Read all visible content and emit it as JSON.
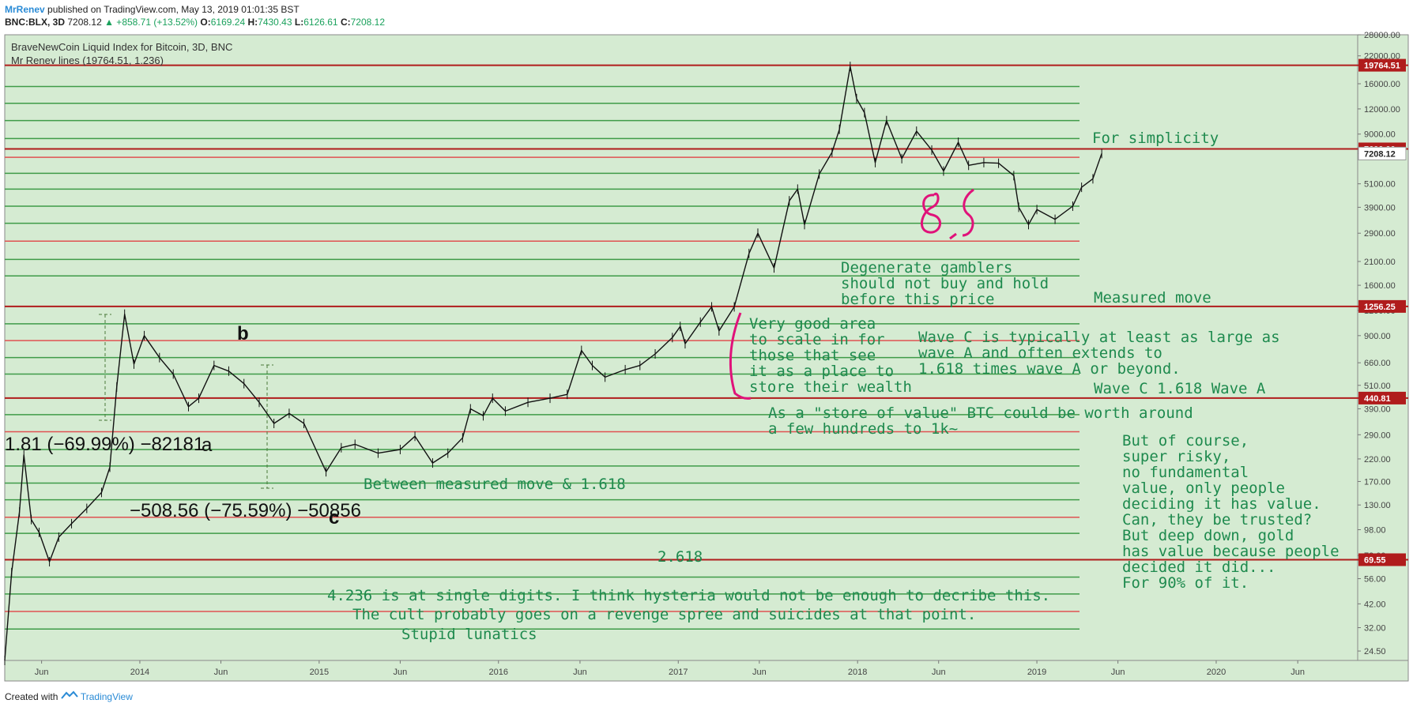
{
  "header": {
    "author": "MrRenev",
    "published": " published on TradingView.com, May 13, 2019 01:01:35 BST",
    "symbol": "BNC:BLX, 3D",
    "last": "7208.12",
    "change": "▲ +858.71 (+13.52%)",
    "o_label": "O:",
    "o": "6169.24",
    "h_label": "H:",
    "h": "7430.43",
    "l_label": "L:",
    "l": "6126.61",
    "c_label": "C:",
    "c": "7208.12"
  },
  "legend": {
    "title": "BraveNewCoin Liquid Index for Bitcoin, 3D, BNC",
    "indicator": "Mr Renev lines (19764.51, 1.236)"
  },
  "footer": {
    "created_with": "Created with",
    "brand": "TradingView"
  },
  "colors": {
    "background": "#d5ebd2",
    "green_line": "#3f9b48",
    "red_line": "#e05252",
    "dark_red_line": "#b01c1c",
    "tag": "#b01c1c",
    "annotation": "#1e8a4e",
    "magenta": "#e0127a"
  },
  "chart_data": {
    "type": "line",
    "title": "BraveNewCoin Liquid Index for Bitcoin, 3D, BNC",
    "y_scale": "log",
    "ylim": [
      22,
      28000
    ],
    "y_ticks": [
      "28000.00",
      "22000.00",
      "16000.00",
      "12000.00",
      "9000.00",
      "7208.12",
      "5100.00",
      "3900.00",
      "2900.00",
      "2100.00",
      "1600.00",
      "1200.00",
      "900.00",
      "660.00",
      "510.00",
      "390.00",
      "290.00",
      "220.00",
      "170.00",
      "130.00",
      "98.00",
      "73.00",
      "56.00",
      "42.00",
      "32.00",
      "24.50"
    ],
    "x_ticks": [
      "Jun",
      "2014",
      "Jun",
      "2015",
      "Jun",
      "2016",
      "Jun",
      "2017",
      "Jun",
      "2018",
      "Jun",
      "2019",
      "Jun",
      "2020",
      "Jun"
    ],
    "price_tags": [
      {
        "label": "19764.51",
        "value": 19764.51,
        "color": "#b01c1c"
      },
      {
        "label": "7600.00",
        "value": 7600,
        "color": "#b01c1c"
      },
      {
        "label": "7208.12",
        "value": 7208.12,
        "color": "#ffffff"
      },
      {
        "label": "1256.25",
        "value": 1256.25,
        "color": "#b01c1c"
      },
      {
        "label": "440.81",
        "value": 440.81,
        "color": "#b01c1c"
      },
      {
        "label": "69.55",
        "value": 69.55,
        "color": "#b01c1c"
      }
    ],
    "series": [
      {
        "values": [
          {
            "x": "2013-04",
            "y": 22
          },
          {
            "x": "2013-04-15",
            "y": 60
          },
          {
            "x": "2013-05",
            "y": 120
          },
          {
            "x": "2013-05-10",
            "y": 230
          },
          {
            "x": "2013-05-25",
            "y": 110
          },
          {
            "x": "2013-06-10",
            "y": 95
          },
          {
            "x": "2013-07-01",
            "y": 68
          },
          {
            "x": "2013-07-20",
            "y": 90
          },
          {
            "x": "2013-08-15",
            "y": 105
          },
          {
            "x": "2013-09-15",
            "y": 125
          },
          {
            "x": "2013-10-15",
            "y": 150
          },
          {
            "x": "2013-11-01",
            "y": 200
          },
          {
            "x": "2013-11-15",
            "y": 500
          },
          {
            "x": "2013-12-01",
            "y": 1150
          },
          {
            "x": "2013-12-20",
            "y": 650
          },
          {
            "x": "2014-01-10",
            "y": 900
          },
          {
            "x": "2014-02-10",
            "y": 700
          },
          {
            "x": "2014-03-10",
            "y": 580
          },
          {
            "x": "2014-04-10",
            "y": 400
          },
          {
            "x": "2014-05-01",
            "y": 440
          },
          {
            "x": "2014-06-01",
            "y": 640
          },
          {
            "x": "2014-07-01",
            "y": 600
          },
          {
            "x": "2014-08-01",
            "y": 520
          },
          {
            "x": "2014-09-01",
            "y": 420
          },
          {
            "x": "2014-10-01",
            "y": 330
          },
          {
            "x": "2014-11-01",
            "y": 370
          },
          {
            "x": "2014-12-01",
            "y": 330
          },
          {
            "x": "2015-01-15",
            "y": 190
          },
          {
            "x": "2015-02-15",
            "y": 250
          },
          {
            "x": "2015-03-15",
            "y": 260
          },
          {
            "x": "2015-05-01",
            "y": 235
          },
          {
            "x": "2015-06-15",
            "y": 245
          },
          {
            "x": "2015-07-15",
            "y": 285
          },
          {
            "x": "2015-08-20",
            "y": 210
          },
          {
            "x": "2015-09-20",
            "y": 235
          },
          {
            "x": "2015-10-20",
            "y": 280
          },
          {
            "x": "2015-11-05",
            "y": 390
          },
          {
            "x": "2015-12-01",
            "y": 360
          },
          {
            "x": "2015-12-20",
            "y": 440
          },
          {
            "x": "2016-01-15",
            "y": 380
          },
          {
            "x": "2016-03-01",
            "y": 420
          },
          {
            "x": "2016-04-15",
            "y": 440
          },
          {
            "x": "2016-05-20",
            "y": 460
          },
          {
            "x": "2016-06-18",
            "y": 760
          },
          {
            "x": "2016-07-10",
            "y": 640
          },
          {
            "x": "2016-08-05",
            "y": 560
          },
          {
            "x": "2016-09-15",
            "y": 610
          },
          {
            "x": "2016-10-15",
            "y": 640
          },
          {
            "x": "2016-11-15",
            "y": 730
          },
          {
            "x": "2016-12-20",
            "y": 880
          },
          {
            "x": "2017-01-05",
            "y": 1000
          },
          {
            "x": "2017-01-15",
            "y": 820
          },
          {
            "x": "2017-02-15",
            "y": 1050
          },
          {
            "x": "2017-03-10",
            "y": 1250
          },
          {
            "x": "2017-03-25",
            "y": 950
          },
          {
            "x": "2017-04-25",
            "y": 1250
          },
          {
            "x": "2017-05-25",
            "y": 2300
          },
          {
            "x": "2017-06-12",
            "y": 2900
          },
          {
            "x": "2017-07-15",
            "y": 1950
          },
          {
            "x": "2017-08-15",
            "y": 4200
          },
          {
            "x": "2017-09-01",
            "y": 4800
          },
          {
            "x": "2017-09-15",
            "y": 3200
          },
          {
            "x": "2017-10-15",
            "y": 5700
          },
          {
            "x": "2017-11-10",
            "y": 7300
          },
          {
            "x": "2017-11-25",
            "y": 9500
          },
          {
            "x": "2017-12-17",
            "y": 19500
          },
          {
            "x": "2017-12-30",
            "y": 13500
          },
          {
            "x": "2018-01-15",
            "y": 11500
          },
          {
            "x": "2018-02-06",
            "y": 6500
          },
          {
            "x": "2018-03-01",
            "y": 10500
          },
          {
            "x": "2018-04-01",
            "y": 6800
          },
          {
            "x": "2018-05-01",
            "y": 9300
          },
          {
            "x": "2018-06-01",
            "y": 7500
          },
          {
            "x": "2018-06-25",
            "y": 5900
          },
          {
            "x": "2018-07-25",
            "y": 8200
          },
          {
            "x": "2018-08-15",
            "y": 6300
          },
          {
            "x": "2018-09-15",
            "y": 6500
          },
          {
            "x": "2018-10-15",
            "y": 6450
          },
          {
            "x": "2018-11-15",
            "y": 5600
          },
          {
            "x": "2018-11-25",
            "y": 3900
          },
          {
            "x": "2018-12-15",
            "y": 3200
          },
          {
            "x": "2019-01-01",
            "y": 3800
          },
          {
            "x": "2019-02-07",
            "y": 3400
          },
          {
            "x": "2019-03-15",
            "y": 3950
          },
          {
            "x": "2019-04-02",
            "y": 4900
          },
          {
            "x": "2019-04-25",
            "y": 5400
          },
          {
            "x": "2019-05-13",
            "y": 7208.12
          }
        ]
      }
    ],
    "horizontal_levels": [
      {
        "value": 19764.51,
        "style": "dark-red",
        "extends": true
      },
      {
        "value": 15500,
        "style": "green"
      },
      {
        "value": 12800,
        "style": "green"
      },
      {
        "value": 10500,
        "style": "green"
      },
      {
        "value": 8550,
        "style": "green"
      },
      {
        "value": 7600,
        "style": "dark-red",
        "extends": true
      },
      {
        "value": 6900,
        "style": "red"
      },
      {
        "value": 5750,
        "style": "green"
      },
      {
        "value": 4800,
        "style": "green"
      },
      {
        "value": 3950,
        "style": "green"
      },
      {
        "value": 3250,
        "style": "green"
      },
      {
        "value": 2650,
        "style": "red"
      },
      {
        "value": 2150,
        "style": "green"
      },
      {
        "value": 1780,
        "style": "green"
      },
      {
        "value": 1256.25,
        "style": "dark-red",
        "extends": true
      },
      {
        "value": 1030,
        "style": "green"
      },
      {
        "value": 850,
        "style": "red"
      },
      {
        "value": 700,
        "style": "green"
      },
      {
        "value": 580,
        "style": "green"
      },
      {
        "value": 440.81,
        "style": "dark-red",
        "extends": true
      },
      {
        "value": 365,
        "style": "green"
      },
      {
        "value": 300,
        "style": "red"
      },
      {
        "value": 245,
        "style": "green"
      },
      {
        "value": 203,
        "style": "green"
      },
      {
        "value": 167,
        "style": "green"
      },
      {
        "value": 138,
        "style": "green"
      },
      {
        "value": 113,
        "style": "red"
      },
      {
        "value": 94,
        "style": "green"
      },
      {
        "value": 69.55,
        "style": "dark-red",
        "extends": true
      },
      {
        "value": 57,
        "style": "green"
      },
      {
        "value": 47,
        "style": "green"
      },
      {
        "value": 38.5,
        "style": "red"
      },
      {
        "value": 31.5,
        "style": "green"
      }
    ]
  },
  "annotations": {
    "for_simplicity": "For simplicity",
    "degenerate_1": "Degenerate gamblers",
    "degenerate_2": "should not buy and hold",
    "degenerate_3": "before this price",
    "measured_move": "Measured move",
    "very_good_1": "Very good area",
    "very_good_2": "to scale in for",
    "very_good_3": "those that see",
    "very_good_4": "it as a place to",
    "very_good_5": "store their wealth",
    "wave_c_1": "Wave C is typically at least as large as",
    "wave_c_2": "wave A and often extends to",
    "wave_c_3": "1.618 times wave A or beyond.",
    "wave_c_label": "Wave C 1.618 Wave A",
    "store_1": "As a \"store of value\" BTC could be worth around",
    "store_2": "a few hundreds to 1k~",
    "but_1": "But of course,",
    "but_2": "super risky,",
    "but_3": "no fundamental",
    "but_4": "value, only people",
    "but_5": "deciding it has value.",
    "but_6": "Can, they be trusted?",
    "but_7": "But deep down, gold",
    "but_8": "has value because people",
    "but_9": "decided it did...",
    "but_10": "For 90% of it.",
    "between": "Between measured move & 1.618",
    "ratio_2618": "2.618",
    "hysteria_1": "4.236 is at single digits. I think hysteria would not be enough to decribe this.",
    "hysteria_2": "The cult probably goes on a revenge spree and suicides at that point.",
    "stupid": "Stupid lunatics",
    "measure_1": "1.81 (−69.99%) −82181",
    "measure_2": "−508.56 (−75.59%) −50856",
    "label_a": "a",
    "label_b": "b",
    "label_c": "c",
    "handwriting": "8.5"
  }
}
